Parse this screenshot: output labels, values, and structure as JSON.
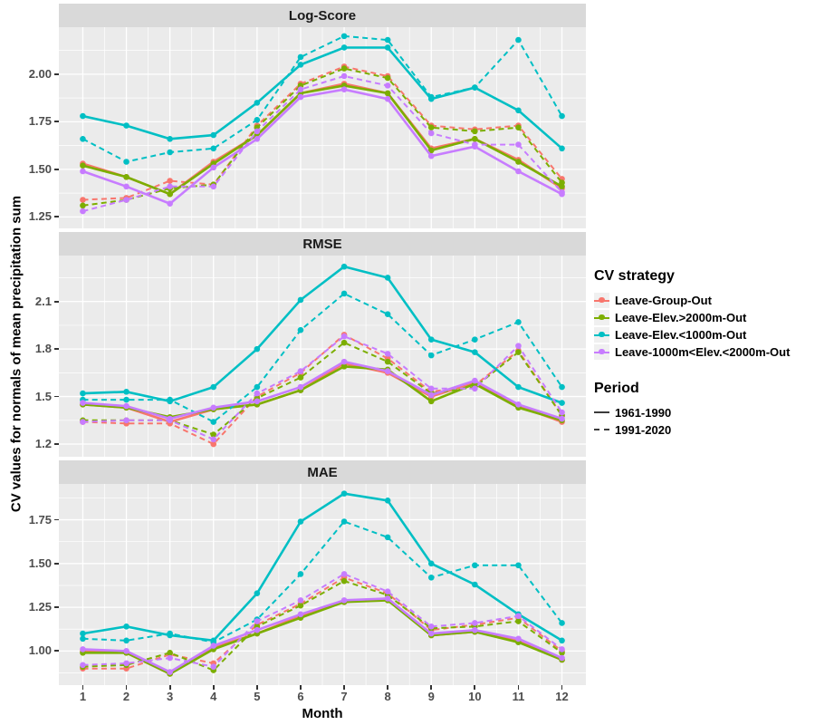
{
  "colors": {
    "panel_bg": "#EBEBEB",
    "strip_bg": "#D9D9D9",
    "grid": "#FFFFFF",
    "tick_text": "#4D4D4D",
    "period_key": "#3b3b3b"
  },
  "legend": {
    "strategy_title": "CV strategy",
    "strategies": [
      {
        "label": "Leave-Group-Out",
        "color": "#F8766D"
      },
      {
        "label": "Leave-Elev.>2000m-Out",
        "color": "#7CAE00"
      },
      {
        "label": "Leave-Elev.<1000m-Out",
        "color": "#00BFC4"
      },
      {
        "label": "Leave-1000m<Elev.<2000m-Out",
        "color": "#C77CFF"
      }
    ],
    "period_title": "Period",
    "periods": [
      {
        "label": "1961-1990",
        "dash": false
      },
      {
        "label": "1991-2020",
        "dash": true
      }
    ]
  },
  "chart_data": {
    "type": "line",
    "x_label": "Month",
    "y_label": "CV values for normals of mean precipitation sum",
    "x": [
      1,
      2,
      3,
      4,
      5,
      6,
      7,
      8,
      9,
      10,
      11,
      12
    ],
    "legend_position": "right",
    "grid": true,
    "panels": [
      {
        "title": "Log-Score",
        "ylim": [
          1.19,
          2.247
        ],
        "yticks": [
          1.25,
          1.5,
          1.75,
          2.0
        ],
        "ytick_labels": [
          "1.25",
          "1.50",
          "1.75",
          "2.00"
        ],
        "series": [
          {
            "strategy": "Leave-Group-Out",
            "period": "1961-1990",
            "values": [
              1.53,
              1.46,
              1.37,
              1.54,
              1.68,
              1.9,
              1.95,
              1.9,
              1.61,
              1.66,
              1.55,
              1.4
            ]
          },
          {
            "strategy": "Leave-Group-Out",
            "period": "1991-2020",
            "values": [
              1.34,
              1.35,
              1.44,
              1.42,
              1.73,
              1.95,
              2.04,
              1.99,
              1.73,
              1.71,
              1.73,
              1.45
            ]
          },
          {
            "strategy": "Leave-Elev.>2000m-Out",
            "period": "1961-1990",
            "values": [
              1.52,
              1.46,
              1.37,
              1.53,
              1.68,
              1.9,
              1.94,
              1.9,
              1.6,
              1.66,
              1.54,
              1.41
            ]
          },
          {
            "strategy": "Leave-Elev.>2000m-Out",
            "period": "1991-2020",
            "values": [
              1.31,
              1.34,
              1.4,
              1.42,
              1.72,
              1.94,
              2.03,
              1.98,
              1.72,
              1.7,
              1.72,
              1.43
            ]
          },
          {
            "strategy": "Leave-Elev.<1000m-Out",
            "period": "1961-1990",
            "values": [
              1.78,
              1.73,
              1.66,
              1.68,
              1.85,
              2.05,
              2.14,
              2.14,
              1.87,
              1.93,
              1.81,
              1.61
            ]
          },
          {
            "strategy": "Leave-Elev.<1000m-Out",
            "period": "1991-2020",
            "values": [
              1.66,
              1.54,
              1.59,
              1.61,
              1.76,
              2.09,
              2.2,
              2.18,
              1.88,
              1.93,
              2.18,
              1.78
            ]
          },
          {
            "strategy": "Leave-1000m<Elev.<2000m-Out",
            "period": "1961-1990",
            "values": [
              1.49,
              1.41,
              1.32,
              1.51,
              1.66,
              1.88,
              1.92,
              1.87,
              1.57,
              1.62,
              1.49,
              1.37
            ]
          },
          {
            "strategy": "Leave-1000m<Elev.<2000m-Out",
            "period": "1991-2020",
            "values": [
              1.28,
              1.34,
              1.41,
              1.41,
              1.7,
              1.92,
              1.99,
              1.94,
              1.69,
              1.63,
              1.63,
              1.38
            ]
          }
        ]
      },
      {
        "title": "RMSE",
        "ylim": [
          1.12,
          2.39
        ],
        "yticks": [
          1.2,
          1.5,
          1.8,
          2.1
        ],
        "ytick_labels": [
          "1.2",
          "1.5",
          "1.8",
          "2.1"
        ],
        "series": [
          {
            "strategy": "Leave-Group-Out",
            "period": "1961-1990",
            "values": [
              1.45,
              1.43,
              1.34,
              1.42,
              1.45,
              1.54,
              1.71,
              1.65,
              1.5,
              1.59,
              1.44,
              1.34
            ]
          },
          {
            "strategy": "Leave-Group-Out",
            "period": "1991-2020",
            "values": [
              1.34,
              1.33,
              1.33,
              1.2,
              1.5,
              1.65,
              1.89,
              1.74,
              1.53,
              1.57,
              1.79,
              1.38
            ]
          },
          {
            "strategy": "Leave-Elev.>2000m-Out",
            "period": "1961-1990",
            "values": [
              1.45,
              1.43,
              1.37,
              1.42,
              1.45,
              1.54,
              1.69,
              1.67,
              1.47,
              1.58,
              1.43,
              1.35
            ]
          },
          {
            "strategy": "Leave-Elev.>2000m-Out",
            "period": "1991-2020",
            "values": [
              1.35,
              1.35,
              1.35,
              1.26,
              1.49,
              1.62,
              1.84,
              1.72,
              1.52,
              1.56,
              1.78,
              1.38
            ]
          },
          {
            "strategy": "Leave-Elev.<1000m-Out",
            "period": "1961-1990",
            "values": [
              1.52,
              1.53,
              1.47,
              1.56,
              1.8,
              2.11,
              2.32,
              2.25,
              1.86,
              1.78,
              1.56,
              1.46
            ]
          },
          {
            "strategy": "Leave-Elev.<1000m-Out",
            "period": "1991-2020",
            "values": [
              1.48,
              1.48,
              1.48,
              1.34,
              1.56,
              1.92,
              2.15,
              2.02,
              1.76,
              1.86,
              1.97,
              1.56
            ]
          },
          {
            "strategy": "Leave-1000m<Elev.<2000m-Out",
            "period": "1961-1990",
            "values": [
              1.46,
              1.44,
              1.36,
              1.43,
              1.47,
              1.56,
              1.72,
              1.66,
              1.51,
              1.6,
              1.45,
              1.36
            ]
          },
          {
            "strategy": "Leave-1000m<Elev.<2000m-Out",
            "period": "1991-2020",
            "values": [
              1.34,
              1.35,
              1.35,
              1.23,
              1.52,
              1.66,
              1.88,
              1.77,
              1.55,
              1.55,
              1.82,
              1.4
            ]
          }
        ]
      },
      {
        "title": "MAE",
        "ylim": [
          0.805,
          1.955
        ],
        "yticks": [
          1.0,
          1.25,
          1.5,
          1.75
        ],
        "ytick_labels": [
          "1.00",
          "1.25",
          "1.50",
          "1.75"
        ],
        "series": [
          {
            "strategy": "Leave-Group-Out",
            "period": "1961-1990",
            "values": [
              1.0,
              0.99,
              0.87,
              1.02,
              1.1,
              1.2,
              1.28,
              1.3,
              1.09,
              1.11,
              1.06,
              0.95
            ]
          },
          {
            "strategy": "Leave-Group-Out",
            "period": "1991-2020",
            "values": [
              0.9,
              0.9,
              0.98,
              0.93,
              1.15,
              1.27,
              1.42,
              1.33,
              1.12,
              1.15,
              1.19,
              1.0
            ]
          },
          {
            "strategy": "Leave-Elev.>2000m-Out",
            "period": "1961-1990",
            "values": [
              0.99,
              0.99,
              0.87,
              1.01,
              1.1,
              1.19,
              1.28,
              1.29,
              1.09,
              1.11,
              1.05,
              0.95
            ]
          },
          {
            "strategy": "Leave-Elev.>2000m-Out",
            "period": "1991-2020",
            "values": [
              0.91,
              0.92,
              0.99,
              0.89,
              1.14,
              1.26,
              1.4,
              1.32,
              1.13,
              1.14,
              1.17,
              0.99
            ]
          },
          {
            "strategy": "Leave-Elev.<1000m-Out",
            "period": "1961-1990",
            "values": [
              1.1,
              1.14,
              1.09,
              1.06,
              1.33,
              1.74,
              1.9,
              1.86,
              1.5,
              1.38,
              1.21,
              1.06
            ]
          },
          {
            "strategy": "Leave-Elev.<1000m-Out",
            "period": "1991-2020",
            "values": [
              1.07,
              1.06,
              1.1,
              1.05,
              1.18,
              1.44,
              1.74,
              1.65,
              1.42,
              1.49,
              1.49,
              1.16
            ]
          },
          {
            "strategy": "Leave-1000m<Elev.<2000m-Out",
            "period": "1961-1990",
            "values": [
              1.01,
              1.0,
              0.88,
              1.03,
              1.12,
              1.21,
              1.29,
              1.3,
              1.1,
              1.12,
              1.07,
              0.96
            ]
          },
          {
            "strategy": "Leave-1000m<Elev.<2000m-Out",
            "period": "1991-2020",
            "values": [
              0.92,
              0.93,
              0.96,
              0.91,
              1.17,
              1.29,
              1.44,
              1.34,
              1.14,
              1.16,
              1.2,
              1.01
            ]
          }
        ]
      }
    ]
  }
}
